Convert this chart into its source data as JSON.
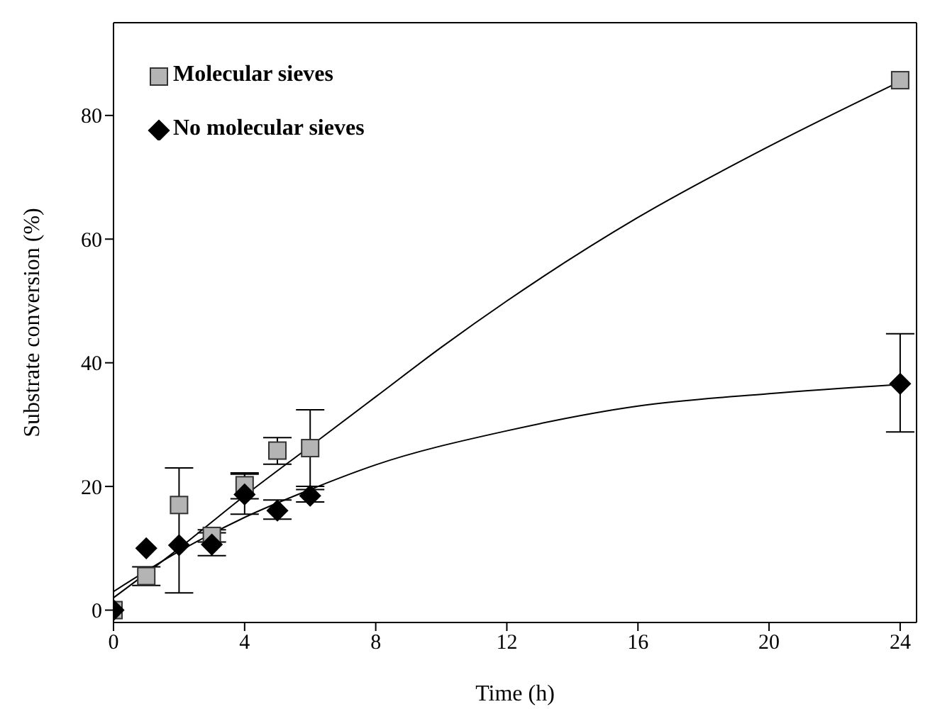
{
  "chart_data": {
    "type": "scatter",
    "xlabel": "Time (h)",
    "ylabel": "Substrate conversion (%)",
    "xlim": [
      0,
      24.5
    ],
    "xticks": [
      0,
      4,
      8,
      12,
      16,
      20,
      24
    ],
    "ylim": [
      -2,
      95
    ],
    "yticks": [
      0,
      20,
      40,
      60,
      80
    ],
    "grid": false,
    "legend": "top left",
    "series": [
      {
        "name": "Molecular sieves",
        "marker": "square",
        "color": "#b4b4b4",
        "x": [
          0,
          1,
          2,
          3,
          4,
          5,
          6,
          24
        ],
        "values": [
          0,
          5.5,
          17,
          12,
          20.2,
          25.8,
          26.2,
          85.7
        ],
        "errors": [
          null,
          [
            4,
            7
          ],
          [
            2.8,
            23
          ],
          [
            11,
            13
          ],
          [
            18,
            22.2
          ],
          [
            23.6,
            27.9
          ],
          [
            20,
            32.4
          ],
          null
        ]
      },
      {
        "name": "No molecular sieves",
        "marker": "diamond",
        "color": "#000000",
        "x": [
          0,
          1,
          2,
          3,
          4,
          5,
          6,
          24
        ],
        "values": [
          0,
          10,
          10.5,
          10.6,
          18.7,
          16.1,
          18.5,
          36.6
        ],
        "errors": [
          null,
          null,
          null,
          [
            8.8,
            12.5
          ],
          [
            15.5,
            22
          ],
          [
            14.7,
            17.8
          ],
          [
            17.5,
            19.5
          ],
          [
            28.8,
            44.7
          ]
        ]
      },
      {
        "type": "line",
        "marker": "none",
        "color": "#000000",
        "x": [
          0,
          2,
          4,
          6,
          8,
          10,
          12,
          16,
          20,
          24
        ],
        "values": [
          2,
          10,
          18.5,
          26.5,
          34.5,
          42.5,
          50,
          63.5,
          75,
          85.5
        ]
      },
      {
        "type": "line",
        "marker": "none",
        "color": "#000000",
        "x": [
          0,
          2,
          4,
          6,
          8,
          12,
          16,
          20,
          24
        ],
        "values": [
          3,
          9.5,
          15,
          19.5,
          23.5,
          29,
          33,
          35,
          36.5
        ]
      }
    ]
  }
}
